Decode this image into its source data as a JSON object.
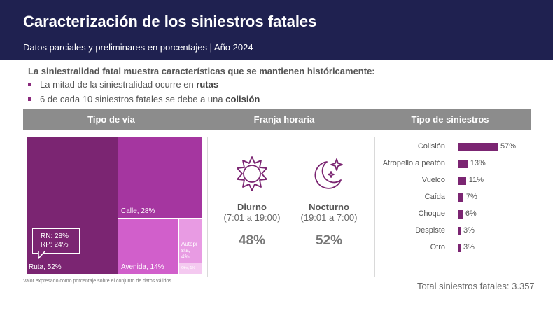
{
  "header": {
    "title": "Caracterización de los siniestros fatales",
    "subtitle": "Datos parciales y preliminares en porcentajes | Año 2024"
  },
  "intro": {
    "heading": "La siniestralidad fatal muestra características que se mantienen históricamente:",
    "bullets": [
      {
        "text": "La mitad de la siniestralidad ocurre en ",
        "bold": "rutas"
      },
      {
        "text": "6 de cada 10 siniestros fatales se debe a una ",
        "bold": "colisión"
      }
    ]
  },
  "columns": [
    "Tipo de vía",
    "Franja horaria",
    "Tipo de siniestros"
  ],
  "colors": {
    "header_bg": "#1f2150",
    "bar_header_bg": "#8c8c8c",
    "ruta": "#7b2572",
    "calle": "#a536a0",
    "avenida": "#d15fcb",
    "autopista": "#e89be3",
    "otro": "#f4c9f0",
    "accent": "#7b2572"
  },
  "chart_data": [
    {
      "type": "treemap",
      "title": "Tipo de vía",
      "items": [
        {
          "name": "Ruta",
          "value": 52,
          "label": "Ruta, 52%"
        },
        {
          "name": "Calle",
          "value": 28,
          "label": "Calle, 28%"
        },
        {
          "name": "Avenida",
          "value": 14,
          "label": "Avenida, 14%"
        },
        {
          "name": "Autopista",
          "value": 4,
          "label_lines": [
            "Autopi",
            "sta,",
            "4%"
          ]
        },
        {
          "name": "Otro",
          "value": 1,
          "label": "Otro, 1%"
        }
      ],
      "callout": [
        "RN: 28%",
        "RP: 24%"
      ]
    },
    {
      "type": "pictogram",
      "title": "Franja horaria",
      "items": [
        {
          "name": "Diurno",
          "range": "(7:01 a 19:00)",
          "value": 48,
          "label": "48%",
          "icon": "sun-icon"
        },
        {
          "name": "Nocturno",
          "range": "(19:01 a 7:00)",
          "value": 52,
          "label": "52%",
          "icon": "moon-stars-icon"
        }
      ]
    },
    {
      "type": "bar",
      "orientation": "horizontal",
      "title": "Tipo de siniestros",
      "categories": [
        "Colisión",
        "Atropello a peatón",
        "Vuelco",
        "Caída",
        "Choque",
        "Despiste",
        "Otro"
      ],
      "values": [
        57,
        13,
        11,
        7,
        6,
        3,
        3
      ],
      "value_labels": [
        "57%",
        "13%",
        "11%",
        "7%",
        "6%",
        "3%",
        "3%"
      ]
    }
  ],
  "footer": {
    "note": "Valor expresado como porcentaje sobre el conjunto de datos válidos.",
    "total": "Total siniestros fatales: 3.357"
  }
}
